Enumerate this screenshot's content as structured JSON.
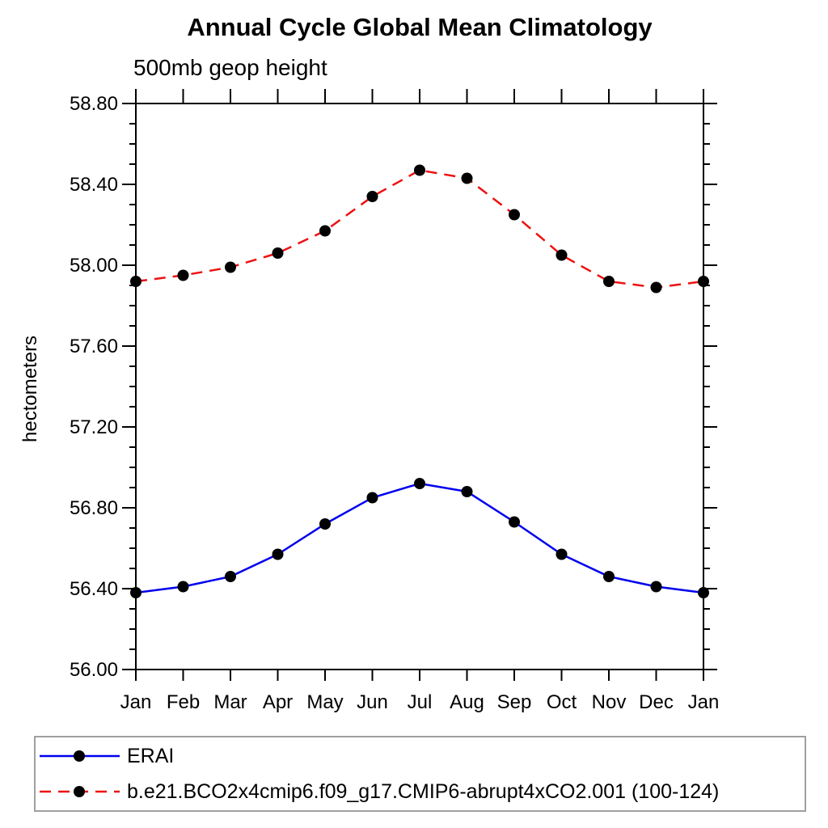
{
  "title": "Annual Cycle Global Mean Climatology",
  "subtitle": "500mb geop height",
  "ylabel": "hectometers",
  "colors": {
    "erai_line": "#0000ee",
    "model_line": "#ee1111",
    "marker": "#000000",
    "axis": "#000000",
    "legend_border": "#a0a0a0"
  },
  "legend": {
    "items": [
      {
        "label": "ERAI",
        "line_style": "solid"
      },
      {
        "label": "b.e21.BCO2x4cmip6.f09_g17.CMIP6-abrupt4xCO2.001 (100-124)",
        "line_style": "dashed"
      }
    ]
  },
  "chart_data": {
    "type": "line",
    "title": "Annual Cycle Global Mean Climatology",
    "subtitle": "500mb geop height",
    "ylabel": "hectometers",
    "xlabel": "",
    "categories": [
      "Jan",
      "Feb",
      "Mar",
      "Apr",
      "May",
      "Jun",
      "Jul",
      "Aug",
      "Sep",
      "Oct",
      "Nov",
      "Dec",
      "Jan"
    ],
    "series": [
      {
        "name": "ERAI",
        "color": "#0000ee",
        "style": "solid",
        "marker": "filled-circle",
        "values": [
          56.38,
          56.41,
          56.46,
          56.57,
          56.72,
          56.85,
          56.92,
          56.88,
          56.73,
          56.57,
          56.46,
          56.41,
          56.38
        ]
      },
      {
        "name": "b.e21.BCO2x4cmip6.f09_g17.CMIP6-abrupt4xCO2.001 (100-124)",
        "color": "#ee1111",
        "style": "dashed",
        "marker": "filled-circle",
        "values": [
          57.92,
          57.95,
          57.99,
          58.06,
          58.17,
          58.34,
          58.47,
          58.43,
          58.25,
          58.05,
          57.92,
          57.89,
          57.92
        ]
      }
    ],
    "ylim": [
      56.0,
      58.8
    ],
    "ytick_major_interval": 0.4,
    "ytick_minor_interval": 0.1,
    "ytick_labels": [
      "56.00",
      "56.40",
      "56.80",
      "57.20",
      "57.60",
      "58.00",
      "58.40",
      "58.80"
    ],
    "grid": false,
    "legend_position": "bottom"
  }
}
